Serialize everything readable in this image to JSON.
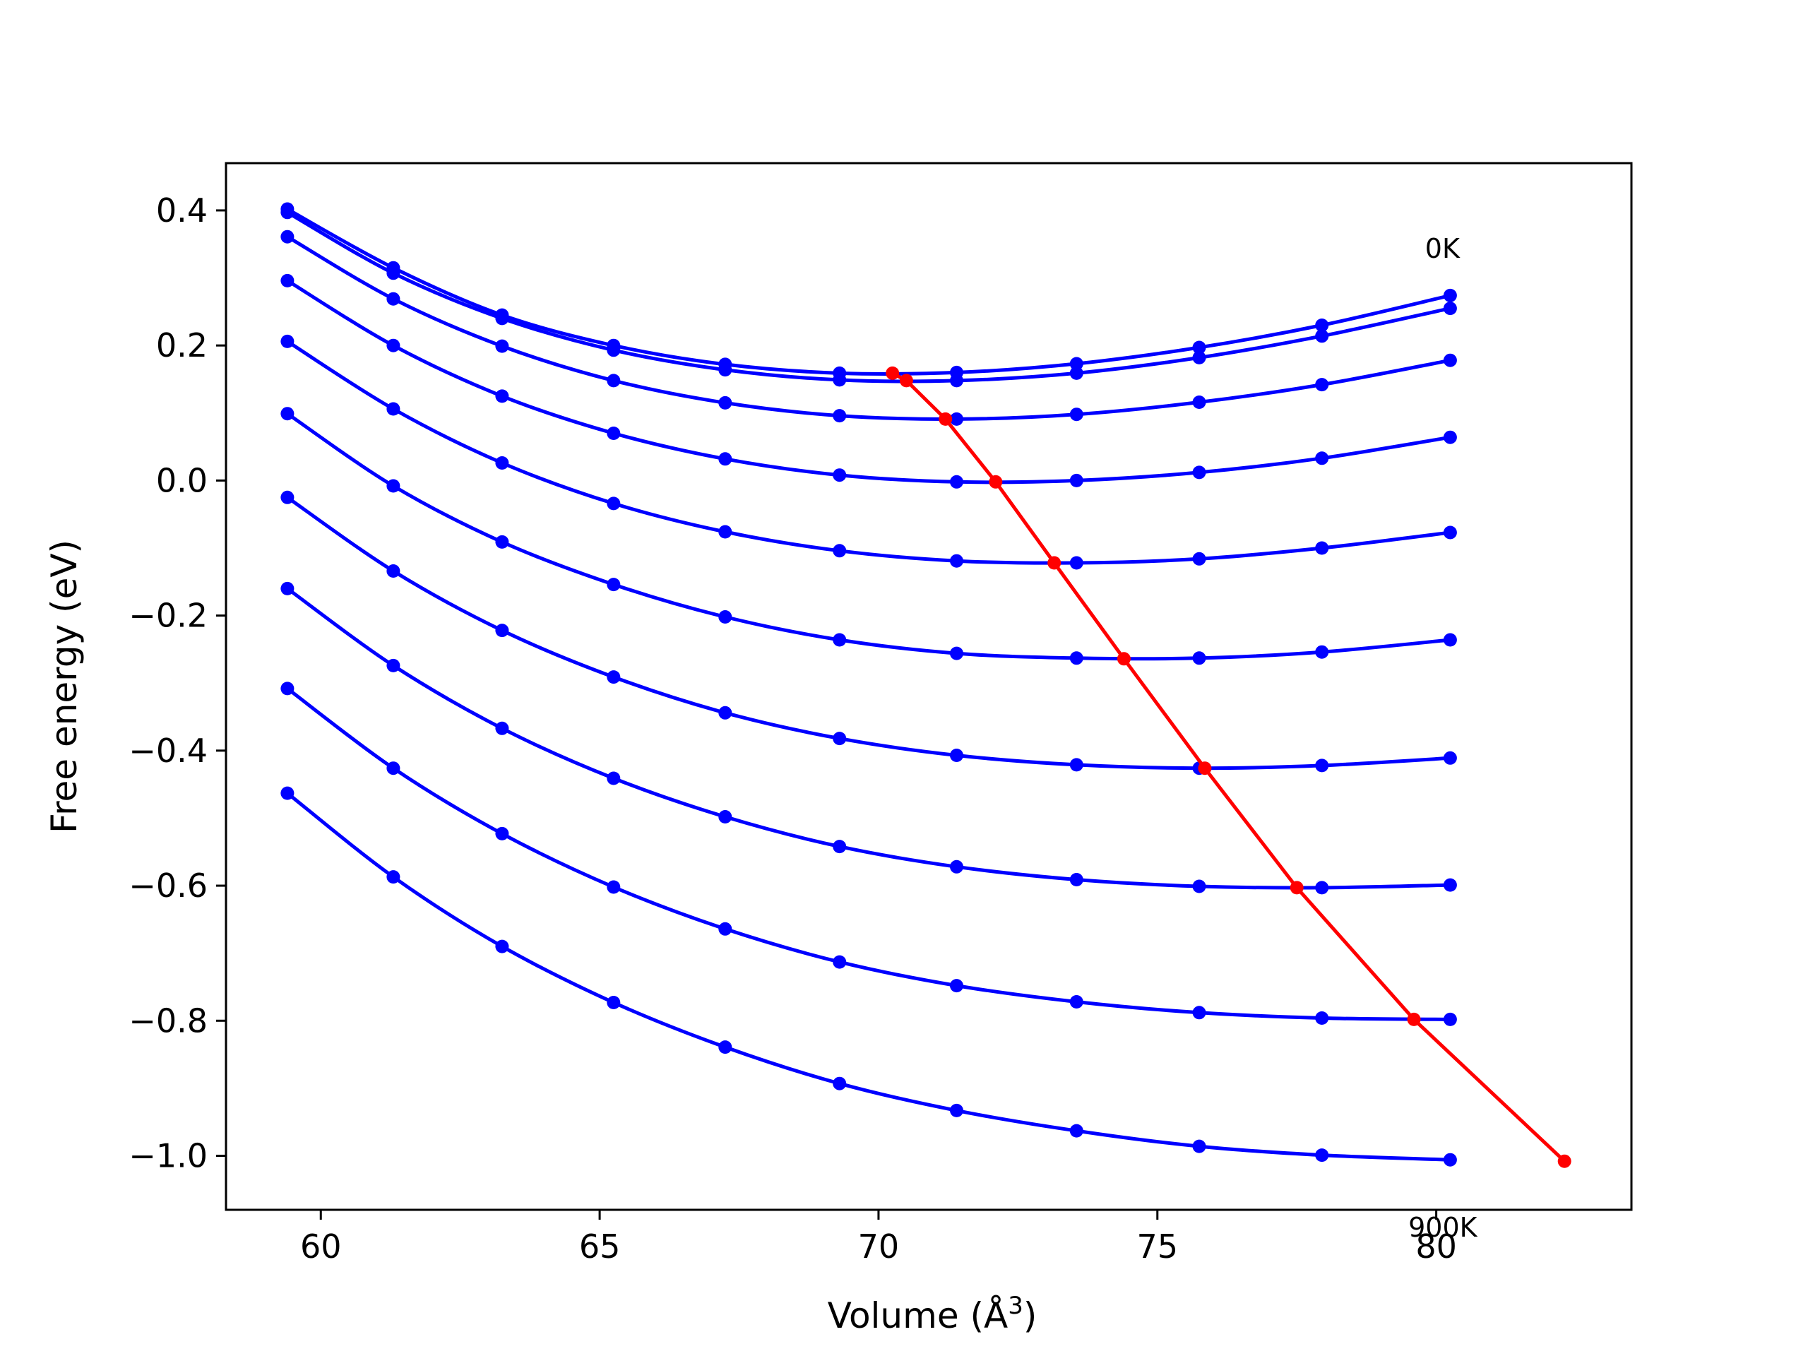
{
  "chart_data": {
    "type": "line",
    "xlabel": "Volume (Å",
    "xlabel_sup": "3",
    "xlabel_close": ")",
    "ylabel": "Free energy (eV)",
    "xlim": [
      58.3,
      83.5
    ],
    "ylim": [
      -1.08,
      0.47
    ],
    "x_ticks": [
      60,
      65,
      70,
      75,
      80
    ],
    "x_tick_labels": [
      "60",
      "65",
      "70",
      "75",
      "80"
    ],
    "y_ticks": [
      0.4,
      0.2,
      0.0,
      -0.2,
      -0.4,
      -0.6,
      -0.8,
      -1.0
    ],
    "y_tick_labels": [
      "0.4",
      "0.2",
      "0.0",
      "−0.2",
      "−0.4",
      "−0.6",
      "−0.8",
      "−1.0"
    ],
    "grid": false,
    "annotations": [
      {
        "text": "0K",
        "x": 79.8,
        "y": 0.33
      },
      {
        "text": "900K",
        "x": 79.5,
        "y": -1.12
      }
    ],
    "x": [
      59.4,
      61.3,
      63.25,
      65.25,
      67.25,
      69.3,
      71.4,
      73.55,
      75.75,
      77.95,
      80.25
    ],
    "series": [
      {
        "color": "#0000ff",
        "values": [
          0.402,
          0.315,
          0.245,
          0.2,
          0.172,
          0.159,
          0.16,
          0.173,
          0.197,
          0.23,
          0.274
        ]
      },
      {
        "color": "#0000ff",
        "values": [
          0.397,
          0.307,
          0.24,
          0.193,
          0.164,
          0.149,
          0.148,
          0.159,
          0.182,
          0.214,
          0.255
        ]
      },
      {
        "color": "#0000ff",
        "values": [
          0.361,
          0.269,
          0.199,
          0.148,
          0.115,
          0.096,
          0.091,
          0.098,
          0.116,
          0.142,
          0.178
        ]
      },
      {
        "color": "#0000ff",
        "values": [
          0.296,
          0.2,
          0.125,
          0.07,
          0.032,
          0.008,
          -0.002,
          0.0,
          0.012,
          0.033,
          0.064
        ]
      },
      {
        "color": "#0000ff",
        "values": [
          0.206,
          0.106,
          0.026,
          -0.034,
          -0.076,
          -0.104,
          -0.119,
          -0.122,
          -0.116,
          -0.1,
          -0.077
        ]
      },
      {
        "color": "#0000ff",
        "values": [
          0.099,
          -0.008,
          -0.091,
          -0.154,
          -0.202,
          -0.236,
          -0.256,
          -0.263,
          -0.263,
          -0.254,
          -0.236
        ]
      },
      {
        "color": "#0000ff",
        "values": [
          -0.025,
          -0.134,
          -0.222,
          -0.291,
          -0.344,
          -0.382,
          -0.407,
          -0.421,
          -0.426,
          -0.422,
          -0.411
        ]
      },
      {
        "color": "#0000ff",
        "values": [
          -0.16,
          -0.274,
          -0.367,
          -0.441,
          -0.498,
          -0.542,
          -0.572,
          -0.591,
          -0.601,
          -0.603,
          -0.599
        ]
      },
      {
        "color": "#0000ff",
        "values": [
          -0.308,
          -0.426,
          -0.523,
          -0.602,
          -0.664,
          -0.713,
          -0.748,
          -0.772,
          -0.788,
          -0.796,
          -0.798
        ]
      },
      {
        "color": "#0000ff",
        "values": [
          -0.463,
          -0.587,
          -0.69,
          -0.773,
          -0.839,
          -0.893,
          -0.933,
          -0.963,
          -0.986,
          -0.999,
          -1.006
        ]
      }
    ],
    "minima_line": {
      "color": "#ff0000",
      "points": [
        {
          "x": 70.25,
          "y": 0.159
        },
        {
          "x": 70.5,
          "y": 0.148
        },
        {
          "x": 71.2,
          "y": 0.091
        },
        {
          "x": 72.1,
          "y": -0.002
        },
        {
          "x": 73.15,
          "y": -0.122
        },
        {
          "x": 74.4,
          "y": -0.264
        },
        {
          "x": 75.85,
          "y": -0.426
        },
        {
          "x": 77.5,
          "y": -0.603
        },
        {
          "x": 79.6,
          "y": -0.798
        },
        {
          "x": 82.3,
          "y": -1.008
        }
      ]
    }
  }
}
